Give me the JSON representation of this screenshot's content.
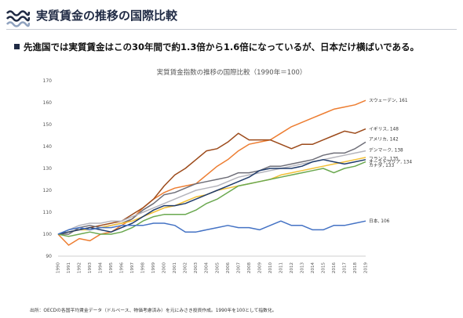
{
  "header": {
    "title": "実質賃金の推移の国際比較",
    "logo_icon": "wave-logo-icon",
    "accent_color": "#1f2a44"
  },
  "headline": "先進国では実質賃金はこの30年間で約1.3倍から1.6倍になっているが、日本だけ横ばいである。",
  "chart_data": {
    "type": "line",
    "title": "実質賃金指数の推移の国際比較（1990年＝100）",
    "xlabel": "",
    "ylabel": "",
    "ylim": [
      90,
      170
    ],
    "yticks": [
      90,
      100,
      110,
      120,
      130,
      140,
      150,
      160,
      170
    ],
    "grid": false,
    "legend": "end-of-line labels",
    "x": [
      "1990",
      "1991",
      "1992",
      "1993",
      "1994",
      "1995",
      "1996",
      "1997",
      "1998",
      "1999",
      "2000",
      "2001",
      "2002",
      "2003",
      "2004",
      "2005",
      "2006",
      "2007",
      "2008",
      "2009",
      "2010",
      "2011",
      "2012",
      "2013",
      "2014",
      "2015",
      "2016",
      "2017",
      "2018",
      "2019"
    ],
    "series": [
      {
        "name": "スウェーデン",
        "end_label": "スウェーデン, 161",
        "color": "#ed7d31",
        "values": [
          100,
          95,
          98,
          97,
          100,
          101,
          104,
          107,
          112,
          116,
          119,
          121,
          122,
          123,
          127,
          131,
          134,
          138,
          141,
          142,
          143,
          146,
          149,
          151,
          153,
          155,
          157,
          158,
          159,
          161
        ]
      },
      {
        "name": "イギリス",
        "end_label": "イギリス, 148",
        "color": "#9c4a1a",
        "values": [
          100,
          101,
          102,
          103,
          104,
          105,
          106,
          109,
          112,
          116,
          122,
          127,
          130,
          134,
          138,
          139,
          142,
          146,
          143,
          143,
          143,
          141,
          139,
          141,
          141,
          143,
          145,
          147,
          146,
          148
        ]
      },
      {
        "name": "アメリカ",
        "end_label": "アメリカ, 142",
        "color": "#6e6e78",
        "values": [
          100,
          100,
          103,
          104,
          103,
          104,
          105,
          107,
          111,
          114,
          118,
          119,
          121,
          123,
          124,
          125,
          126,
          128,
          128,
          129,
          131,
          131,
          132,
          133,
          134,
          136,
          137,
          137,
          139,
          142
        ]
      },
      {
        "name": "デンマーク",
        "end_label": "デンマーク, 138",
        "color": "#b4b4bc",
        "values": [
          100,
          102,
          104,
          105,
          105,
          106,
          106,
          108,
          110,
          112,
          114,
          116,
          118,
          120,
          121,
          122,
          124,
          126,
          127,
          128,
          129,
          130,
          131,
          132,
          133,
          134,
          135,
          136,
          137,
          138
        ]
      },
      {
        "name": "フランス",
        "end_label": "フランス, 135",
        "color": "#f2c036",
        "values": [
          100,
          101,
          102,
          102,
          103,
          104,
          105,
          106,
          108,
          110,
          112,
          113,
          115,
          117,
          118,
          120,
          121,
          122,
          123,
          124,
          125,
          127,
          128,
          129,
          130,
          131,
          132,
          133,
          134,
          135
        ]
      },
      {
        "name": "オーストラリア",
        "end_label": "オーストラリア, 134",
        "color": "#1f3b6b",
        "values": [
          100,
          101,
          102,
          103,
          102,
          101,
          103,
          105,
          108,
          111,
          113,
          113,
          114,
          116,
          118,
          120,
          122,
          124,
          126,
          129,
          130,
          130,
          130,
          131,
          133,
          134,
          133,
          132,
          133,
          134
        ]
      },
      {
        "name": "カナダ",
        "end_label": "カナダ, 133",
        "color": "#6aa84f",
        "values": [
          100,
          99,
          100,
          101,
          100,
          100,
          101,
          103,
          106,
          108,
          109,
          109,
          109,
          111,
          114,
          116,
          119,
          122,
          123,
          124,
          125,
          126,
          127,
          128,
          129,
          130,
          128,
          130,
          131,
          133
        ]
      },
      {
        "name": "日本",
        "end_label": "日本, 106",
        "color": "#4472c4",
        "values": [
          100,
          102,
          103,
          102,
          103,
          103,
          104,
          104,
          104,
          105,
          105,
          104,
          101,
          101,
          102,
          103,
          104,
          103,
          103,
          102,
          104,
          106,
          104,
          104,
          102,
          102,
          104,
          104,
          105,
          106
        ]
      }
    ]
  },
  "source_note": "出所：OECDの各国平均賃金データ（ドルベース、物価考慮済み）を元にみさき投資作成。1990年を100として指数化。"
}
